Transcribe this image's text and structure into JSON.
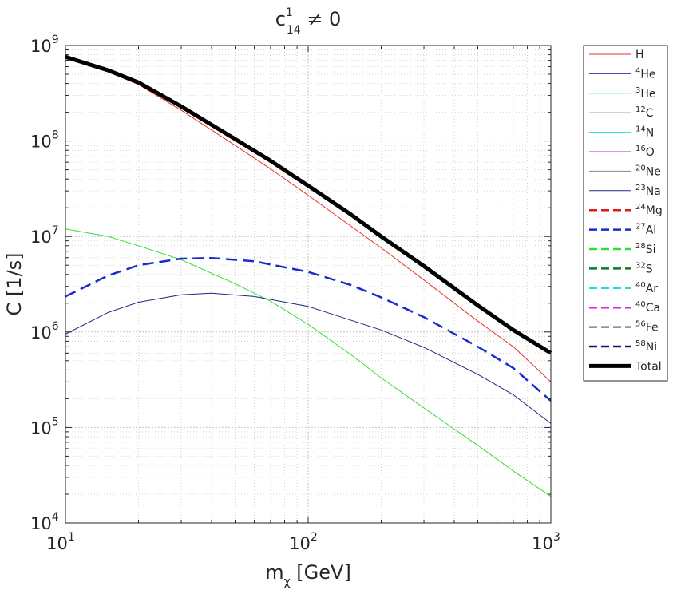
{
  "chart_data": {
    "type": "line",
    "title": {
      "base": "c",
      "superscript": "1",
      "subscript": "14",
      "suffix": " ≠ 0"
    },
    "xlabel": {
      "base": "m",
      "subscript": "χ",
      "suffix": " [GeV]"
    },
    "ylabel": "C [1/s]",
    "xscale": "log",
    "yscale": "log",
    "xlim": [
      10,
      1000
    ],
    "ylim": [
      10000,
      1000000000
    ],
    "grid": true,
    "minor_grid": true,
    "legend_position": "outside-right",
    "x_ticks": [
      {
        "value": 10,
        "base": "10",
        "exp": "1"
      },
      {
        "value": 100,
        "base": "10",
        "exp": "2"
      },
      {
        "value": 1000,
        "base": "10",
        "exp": "3"
      }
    ],
    "y_ticks": [
      {
        "value": 10000,
        "base": "10",
        "exp": "4"
      },
      {
        "value": 100000,
        "base": "10",
        "exp": "5"
      },
      {
        "value": 1000000,
        "base": "10",
        "exp": "6"
      },
      {
        "value": 10000000,
        "base": "10",
        "exp": "7"
      },
      {
        "value": 100000000,
        "base": "10",
        "exp": "8"
      },
      {
        "value": 1000000000,
        "base": "10",
        "exp": "9"
      }
    ],
    "series": [
      {
        "name": "H",
        "sup": "",
        "label": "H",
        "color": "#e8302a",
        "dash": false,
        "bold": false,
        "x": [
          10,
          15,
          20,
          30,
          50,
          70,
          100,
          200,
          300,
          500,
          700,
          1000
        ],
        "y": [
          750000000,
          530000000,
          390000000,
          210000000,
          90000000,
          51000000,
          27000000,
          7600000,
          3500000,
          1300000,
          700000,
          300000
        ]
      },
      {
        "name": "4He",
        "sup": "4",
        "label": "He",
        "color": "#2a36b6",
        "dash": false,
        "bold": false,
        "x": [],
        "y": []
      },
      {
        "name": "3He",
        "sup": "3",
        "label": "He",
        "color": "#33dd33",
        "dash": false,
        "bold": false,
        "x": [
          10,
          15,
          20,
          30,
          50,
          70,
          100,
          150,
          200,
          300,
          500,
          700,
          1000
        ],
        "y": [
          12000000,
          10000000,
          8000000,
          5700000,
          3200000,
          2100000,
          1200000,
          580000,
          330000,
          160000,
          65000,
          35000,
          19000
        ]
      },
      {
        "name": "12C",
        "sup": "12",
        "label": "C",
        "color": "#0b7a2c",
        "dash": false,
        "bold": false,
        "x": [],
        "y": []
      },
      {
        "name": "14N",
        "sup": "14",
        "label": "N",
        "color": "#22dddd",
        "dash": false,
        "bold": false,
        "x": [],
        "y": []
      },
      {
        "name": "16O",
        "sup": "16",
        "label": "O",
        "color": "#cc22cc",
        "dash": false,
        "bold": false,
        "x": [],
        "y": []
      },
      {
        "name": "20Ne",
        "sup": "20",
        "label": "Ne",
        "color": "#888888",
        "dash": false,
        "bold": false,
        "x": [],
        "y": []
      },
      {
        "name": "23Na",
        "sup": "23",
        "label": "Na",
        "color": "#1a2a80",
        "dash": false,
        "bold": false,
        "x": [
          10,
          15,
          20,
          30,
          40,
          60,
          100,
          200,
          300,
          500,
          700,
          1000
        ],
        "y": [
          950000,
          1600000,
          2050000,
          2450000,
          2550000,
          2350000,
          1850000,
          1050000,
          690000,
          360000,
          220000,
          110000
        ]
      },
      {
        "name": "24Mg",
        "sup": "24",
        "label": "Mg",
        "color": "#dd1a1a",
        "dash": true,
        "bold": false,
        "x": [],
        "y": []
      },
      {
        "name": "27Al",
        "sup": "27",
        "label": "Al",
        "color": "#1a2acc",
        "dash": true,
        "bold": false,
        "x": [
          10,
          15,
          20,
          30,
          40,
          60,
          100,
          150,
          200,
          300,
          500,
          700,
          1000
        ],
        "y": [
          2350000,
          3900000,
          5000000,
          5850000,
          5950000,
          5500000,
          4250000,
          3100000,
          2300000,
          1430000,
          700000,
          420000,
          190000
        ]
      },
      {
        "name": "28Si",
        "sup": "28",
        "label": "Si",
        "color": "#33dd33",
        "dash": true,
        "bold": false,
        "x": [],
        "y": []
      },
      {
        "name": "32S",
        "sup": "32",
        "label": "S",
        "color": "#0b7a2c",
        "dash": true,
        "bold": false,
        "x": [],
        "y": []
      },
      {
        "name": "40Ar",
        "sup": "40",
        "label": "Ar",
        "color": "#22dddd",
        "dash": true,
        "bold": false,
        "x": [],
        "y": []
      },
      {
        "name": "40Ca",
        "sup": "40",
        "label": "Ca",
        "color": "#dd22dd",
        "dash": true,
        "bold": false,
        "x": [],
        "y": []
      },
      {
        "name": "56Fe",
        "sup": "56",
        "label": "Fe",
        "color": "#888888",
        "dash": true,
        "bold": false,
        "x": [],
        "y": []
      },
      {
        "name": "58Ni",
        "sup": "58",
        "label": "Ni",
        "color": "#101a6a",
        "dash": true,
        "bold": false,
        "x": [],
        "y": []
      },
      {
        "name": "Total",
        "sup": "",
        "label": "Total",
        "color": "#000000",
        "dash": false,
        "bold": true,
        "x": [
          10,
          15,
          20,
          30,
          50,
          70,
          100,
          150,
          200,
          300,
          500,
          700,
          1000
        ],
        "y": [
          760000000,
          550000000,
          410000000,
          230000000,
          105000000,
          62000000,
          34000000,
          17000000,
          10000000,
          4900000,
          1900000,
          1050000,
          600000
        ]
      }
    ]
  }
}
